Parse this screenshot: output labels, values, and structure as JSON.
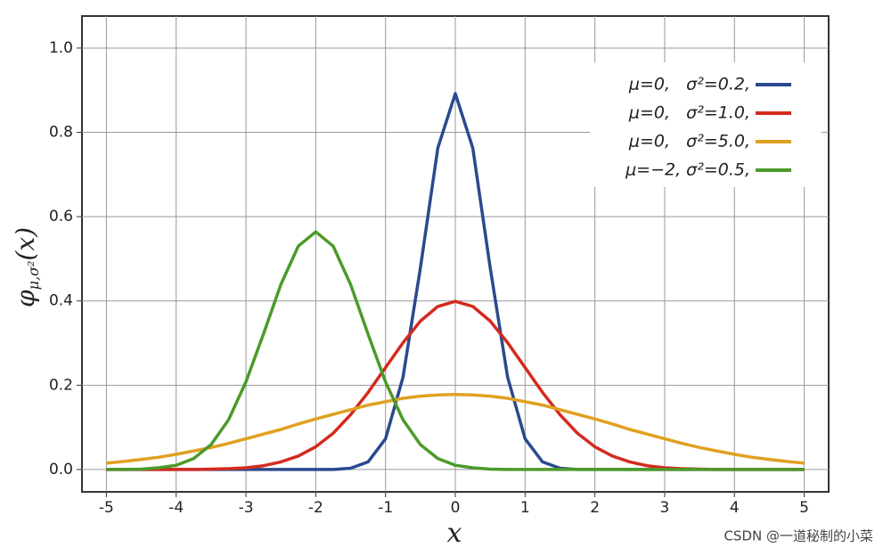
{
  "chart_data": {
    "type": "line",
    "x_label": "x",
    "y_label": {
      "base": "φ",
      "sub": "μ,σ²",
      "arg": "(x)"
    },
    "x": [
      -5,
      -4.75,
      -4.5,
      -4.25,
      -4,
      -3.75,
      -3.5,
      -3.25,
      -3,
      -2.75,
      -2.5,
      -2.25,
      -2,
      -1.75,
      -1.5,
      -1.25,
      -1,
      -0.75,
      -0.5,
      -0.25,
      0,
      0.25,
      0.5,
      0.75,
      1,
      1.25,
      1.5,
      1.75,
      2,
      2.25,
      2.5,
      2.75,
      3,
      3.25,
      3.5,
      3.75,
      4,
      4.25,
      4.5,
      4.75,
      5
    ],
    "series": [
      {
        "name": "μ=0,   σ²=0.2,",
        "color": "#2a4a8f",
        "values": [
          0,
          0,
          0,
          0,
          0,
          0,
          0,
          0,
          0,
          0,
          0,
          0,
          0,
          0,
          0.003,
          0.018,
          0.073,
          0.219,
          0.478,
          0.763,
          0.892,
          0.763,
          0.478,
          0.219,
          0.073,
          0.018,
          0.003,
          0,
          0,
          0,
          0,
          0,
          0,
          0,
          0,
          0,
          0,
          0,
          0,
          0,
          0
        ]
      },
      {
        "name": "μ=0,   σ²=1.0,",
        "color": "#d42a1e",
        "values": [
          0,
          0,
          0,
          0,
          0,
          0,
          0.001,
          0.002,
          0.004,
          0.009,
          0.018,
          0.032,
          0.054,
          0.086,
          0.13,
          0.183,
          0.242,
          0.301,
          0.352,
          0.387,
          0.399,
          0.387,
          0.352,
          0.301,
          0.242,
          0.183,
          0.13,
          0.086,
          0.054,
          0.032,
          0.018,
          0.009,
          0.004,
          0.002,
          0.001,
          0,
          0,
          0,
          0,
          0,
          0
        ]
      },
      {
        "name": "μ=0,   σ²=5.0,",
        "color": "#e0a020",
        "values": [
          0.015,
          0.019,
          0.024,
          0.029,
          0.036,
          0.044,
          0.052,
          0.062,
          0.073,
          0.084,
          0.095,
          0.108,
          0.12,
          0.131,
          0.142,
          0.153,
          0.161,
          0.169,
          0.174,
          0.177,
          0.178,
          0.177,
          0.174,
          0.169,
          0.161,
          0.153,
          0.142,
          0.131,
          0.12,
          0.108,
          0.095,
          0.084,
          0.073,
          0.062,
          0.052,
          0.044,
          0.036,
          0.029,
          0.024,
          0.019,
          0.015
        ]
      },
      {
        "name": "μ=−2, σ²=0.5,",
        "color": "#4c9a2a",
        "values": [
          0,
          0,
          0.001,
          0.004,
          0.01,
          0.026,
          0.059,
          0.118,
          0.208,
          0.321,
          0.439,
          0.53,
          0.564,
          0.53,
          0.439,
          0.321,
          0.208,
          0.118,
          0.059,
          0.026,
          0.01,
          0.004,
          0.001,
          0,
          0,
          0,
          0,
          0,
          0,
          0,
          0,
          0,
          0,
          0,
          0,
          0,
          0,
          0,
          0,
          0,
          0
        ]
      }
    ],
    "xlim": [
      -5.35,
      5.35
    ],
    "ylim": [
      -0.053,
      1.076
    ],
    "xticks": [
      -5,
      -4,
      -3,
      -2,
      -1,
      0,
      1,
      2,
      3,
      4,
      5
    ],
    "yticks": [
      {
        "value": 0,
        "label": "0.0"
      },
      {
        "value": 0.2,
        "label": "0.2"
      },
      {
        "value": 0.4,
        "label": "0.4"
      },
      {
        "value": 0.6,
        "label": "0.6"
      },
      {
        "value": 0.8,
        "label": "0.8"
      },
      {
        "value": 1,
        "label": "1.0"
      }
    ],
    "grid": true,
    "legend": "upper right"
  },
  "watermark": "CSDN @一道秘制的小菜"
}
